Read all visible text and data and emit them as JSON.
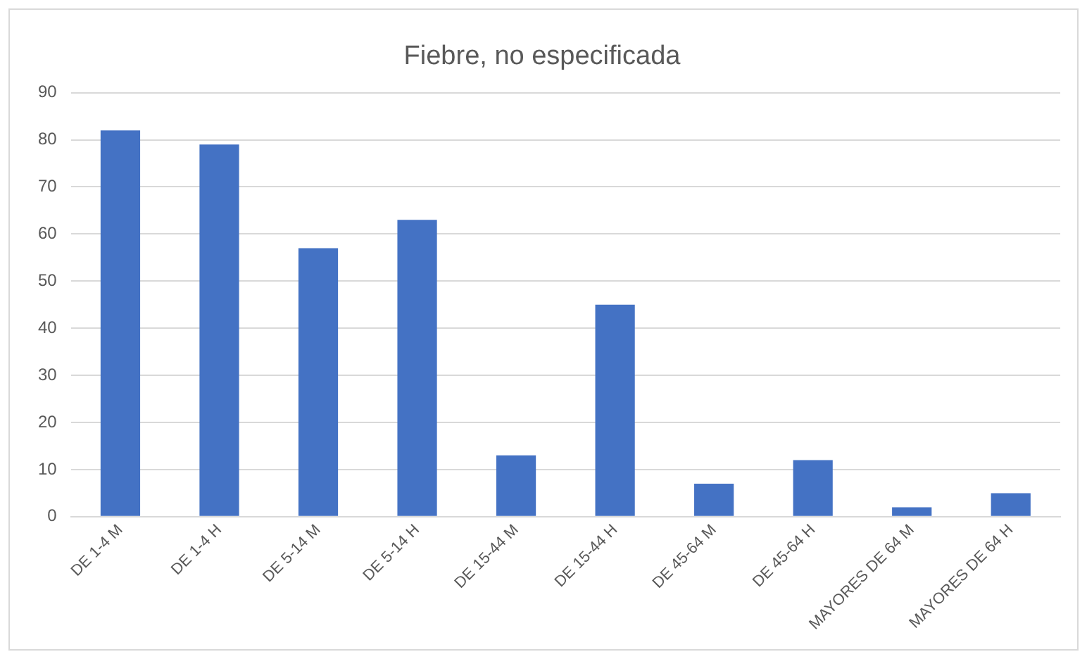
{
  "chart_data": {
    "type": "bar",
    "title": "Fiebre, no especificada",
    "categories": [
      "DE 1-4 M",
      "DE 1-4 H",
      "DE 5-14 M",
      "DE 5-14 H",
      "DE 15-44 M",
      "DE 15-44 H",
      "DE 45-64 M",
      "DE 45-64 H",
      "MAYORES DE 64 M",
      "MAYORES DE 64 H"
    ],
    "values": [
      82,
      79,
      57,
      63,
      13,
      45,
      7,
      12,
      2,
      5
    ],
    "color": "#4472c4",
    "ylim": [
      0,
      90
    ],
    "yticks": [
      0,
      10,
      20,
      30,
      40,
      50,
      60,
      70,
      80,
      90
    ],
    "grid": "y"
  }
}
